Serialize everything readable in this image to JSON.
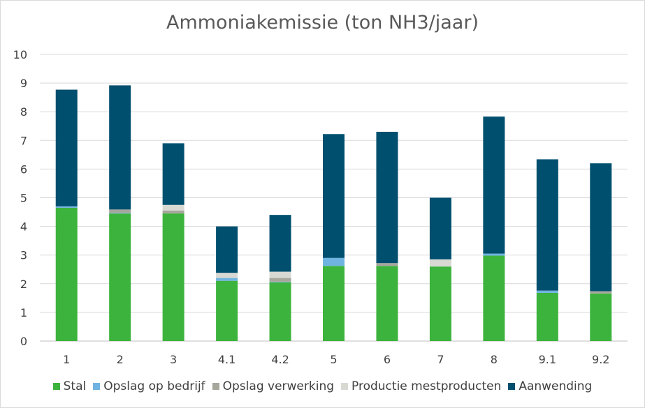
{
  "chart_data": {
    "type": "bar",
    "stacked": true,
    "title": "Ammoniakemissie (ton NH3/jaar)",
    "xlabel": "",
    "ylabel": "",
    "ylim": [
      0,
      10
    ],
    "yticks": [
      "0",
      "1",
      "2",
      "3",
      "4",
      "5",
      "6",
      "7",
      "8",
      "9",
      "10"
    ],
    "grid": true,
    "legend_position": "bottom",
    "categories": [
      "1",
      "2",
      "3",
      "4.1",
      "4.2",
      "5",
      "6",
      "7",
      "8",
      "9.1",
      "9.2"
    ],
    "series": [
      {
        "name": "Stal",
        "color": "#3cb33c",
        "values": [
          4.65,
          4.45,
          4.45,
          2.1,
          2.05,
          2.62,
          2.62,
          2.6,
          2.98,
          1.68,
          1.66
        ]
      },
      {
        "name": "Opslag op bedrijf",
        "color": "#6fb3e0",
        "values": [
          0.05,
          0.02,
          0.0,
          0.1,
          0.02,
          0.28,
          0.0,
          0.0,
          0.07,
          0.08,
          0.0
        ]
      },
      {
        "name": "Opslag verwerking",
        "color": "#a6a69c",
        "values": [
          0.0,
          0.12,
          0.1,
          0.0,
          0.13,
          0.0,
          0.1,
          0.0,
          0.0,
          0.0,
          0.08
        ]
      },
      {
        "name": "Productie mestproducten",
        "color": "#d9d9d4",
        "values": [
          0.0,
          0.0,
          0.2,
          0.18,
          0.22,
          0.0,
          0.0,
          0.25,
          0.0,
          0.0,
          0.0
        ]
      },
      {
        "name": "Aanwending",
        "color": "#004f6e",
        "values": [
          4.07,
          4.33,
          2.15,
          1.62,
          1.98,
          4.32,
          4.58,
          2.15,
          4.78,
          4.58,
          4.46
        ]
      }
    ]
  }
}
